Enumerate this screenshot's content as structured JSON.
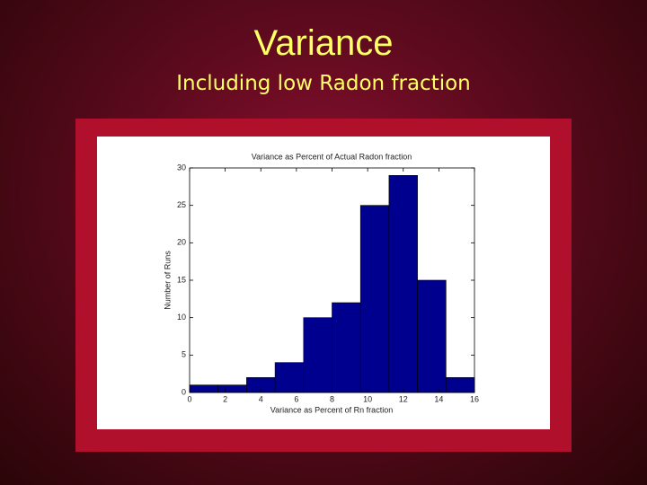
{
  "slide": {
    "title": "Variance",
    "subtitle": "Including low Radon fraction"
  },
  "chart_data": {
    "type": "histogram",
    "title": "Variance as Percent of Actual Radon fraction",
    "x_label": "Variance as Percent of Rn fraction",
    "y_label": "Number of Runs",
    "bins": [
      0,
      1.6,
      3.2,
      4.8,
      6.4,
      8.0,
      9.6,
      11.2,
      12.8,
      14.4,
      16
    ],
    "counts": [
      1,
      1,
      2,
      4,
      10,
      12,
      25,
      29,
      15,
      2
    ],
    "color": "#00008f",
    "xlim": [
      0,
      16
    ],
    "xticks": [
      0,
      2,
      4,
      6,
      8,
      10,
      12,
      14,
      16
    ],
    "ylim": [
      0,
      30
    ],
    "yticks": [
      0,
      5,
      10,
      15,
      20,
      25,
      30
    ]
  }
}
